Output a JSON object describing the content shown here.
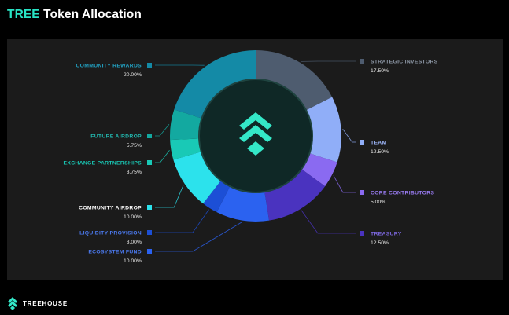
{
  "header": {
    "title_accent": "TREE",
    "title_rest": "Token Allocation"
  },
  "brand": {
    "name": "TREEHOUSE",
    "logo_icon": "treehouse-chevron-logo-icon"
  },
  "colors": {
    "page_background": "#000000",
    "panel_background": "#1b1b1b",
    "accent": "#28e3c4",
    "donut_core": "#0f2826",
    "center_logo": "#34e8c8"
  },
  "chart_data": {
    "type": "pie",
    "variant": "donut",
    "start": "top, clockwise",
    "legend": "labels around the donut with leader lines",
    "slices": [
      {
        "label": "STRATEGIC INVESTORS",
        "value": 17.5,
        "value_text": "17.50%",
        "color": "#4e5c6f",
        "label_color": "#8a94a2",
        "side": "right"
      },
      {
        "label": "TEAM",
        "value": 12.5,
        "value_text": "12.50%",
        "color": "#90aef8",
        "label_color": "#9bb3f5",
        "side": "right"
      },
      {
        "label": "CORE CONTRIBUTORS",
        "value": 5.0,
        "value_text": "5.00%",
        "color": "#8a6af1",
        "label_color": "#9a7cf4",
        "side": "right"
      },
      {
        "label": "TREASURY",
        "value": 12.5,
        "value_text": "12.50%",
        "color": "#4a33bf",
        "label_color": "#7d68e0",
        "side": "right"
      },
      {
        "label": "ECOSYSTEM FUND",
        "value": 10.0,
        "value_text": "10.00%",
        "color": "#2b62f0",
        "label_color": "#4b7af0",
        "side": "left"
      },
      {
        "label": "LIQUIDITY PROVISION",
        "value": 3.0,
        "value_text": "3.00%",
        "color": "#1c4fd6",
        "label_color": "#4b7af0",
        "side": "left"
      },
      {
        "label": "COMMUNITY AIRDROP",
        "value": 10.0,
        "value_text": "10.00%",
        "color": "#2ce2ec",
        "label_color": "#ffffff",
        "side": "left"
      },
      {
        "label": "EXCHANGE PARTNERSHIPS",
        "value": 3.75,
        "value_text": "3.75%",
        "color": "#19c9b6",
        "label_color": "#19c9b6",
        "side": "left"
      },
      {
        "label": "FUTURE AIRDROP",
        "value": 5.75,
        "value_text": "5.75%",
        "color": "#13a9a0",
        "label_color": "#22b9b0",
        "side": "left"
      },
      {
        "label": "COMMUNITY REWARDS",
        "value": 20.0,
        "value_text": "20.00%",
        "color": "#148aa6",
        "label_color": "#22a3c4",
        "side": "left"
      }
    ]
  }
}
